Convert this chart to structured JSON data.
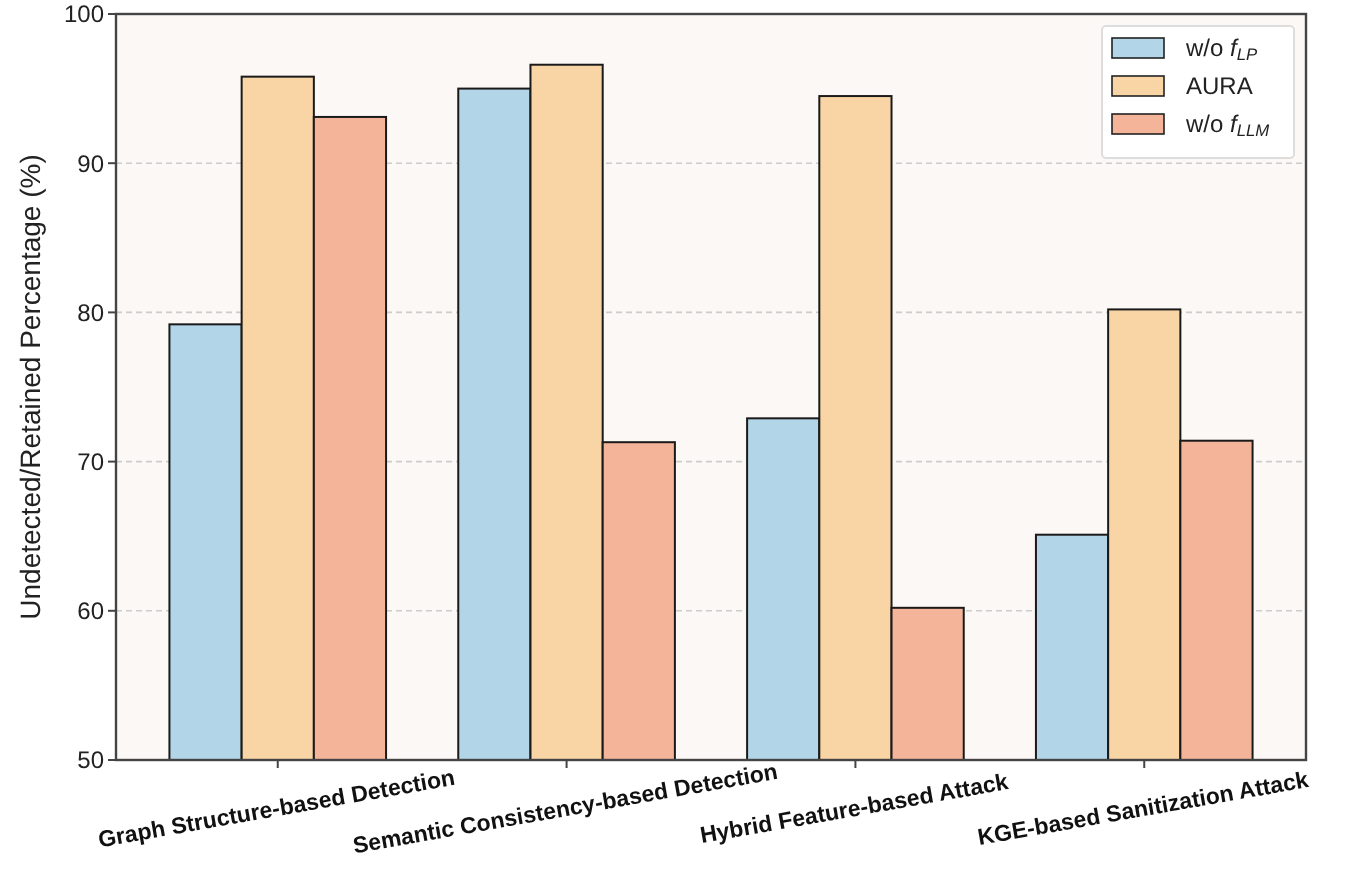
{
  "chart_data": {
    "type": "bar",
    "ylabel": "Undetected/Retained Percentage (%)",
    "categories": [
      "Graph Structure-based Detection",
      "Semantic Consistency-based Detection",
      "Hybrid Feature-based Attack",
      "KGE-based Sanitization Attack"
    ],
    "series": [
      {
        "name": "w/o f$_{LP}$",
        "color": "#b3d5e8",
        "values": [
          79.2,
          95.0,
          72.9,
          65.1
        ]
      },
      {
        "name": "AURA",
        "color": "#f9d5a6",
        "values": [
          95.8,
          96.6,
          94.5,
          80.2
        ]
      },
      {
        "name": "w/o f$_{LLM}$",
        "color": "#f4b49a",
        "values": [
          93.1,
          71.3,
          60.2,
          71.4
        ]
      }
    ],
    "ylim": [
      50,
      100
    ],
    "yticks": [
      50,
      60,
      70,
      80,
      90,
      100
    ],
    "grid": "y",
    "legend": "top right"
  }
}
